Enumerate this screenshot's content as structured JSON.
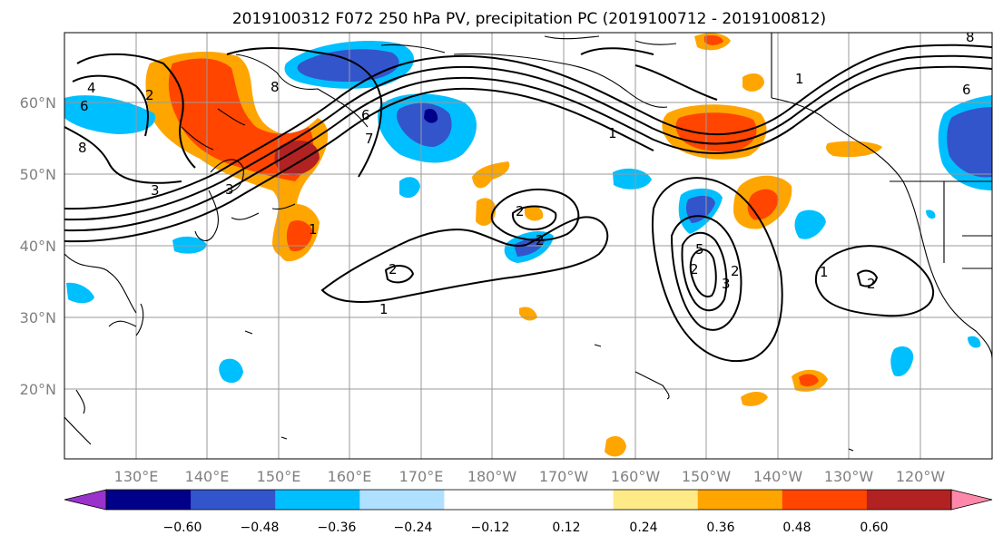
{
  "title": "2019100312 F072 250 hPa PV, precipitation PC (2019100712 - 2019100812)",
  "map": {
    "lat_labels": [
      "60°N",
      "50°N",
      "40°N",
      "30°N",
      "20°N"
    ],
    "lon_labels": [
      "130°E",
      "140°E",
      "150°E",
      "160°E",
      "170°E",
      "180°W",
      "170°W",
      "160°W",
      "150°W",
      "140°W",
      "130°W",
      "120°W"
    ],
    "contour_labels": [
      "4",
      "6",
      "8",
      "2",
      "3",
      "3",
      "8",
      "1",
      "6",
      "7",
      "2",
      "2",
      "1",
      "2",
      "2",
      "1",
      "5",
      "3",
      "2",
      "1",
      "2",
      "6",
      "8",
      "1"
    ]
  },
  "colorbar": {
    "colors": [
      "#9933cc",
      "#000088",
      "#3355cc",
      "#00bfff",
      "#b0e0ff",
      "#ffffff",
      "#ffffff",
      "#ffea88",
      "#ffa500",
      "#ff4500",
      "#b22222",
      "#ff88aa"
    ],
    "tick_labels": [
      "−0.60",
      "−0.48",
      "−0.36",
      "−0.24",
      "−0.12",
      "0.12",
      "0.24",
      "0.36",
      "0.48",
      "0.60"
    ]
  }
}
